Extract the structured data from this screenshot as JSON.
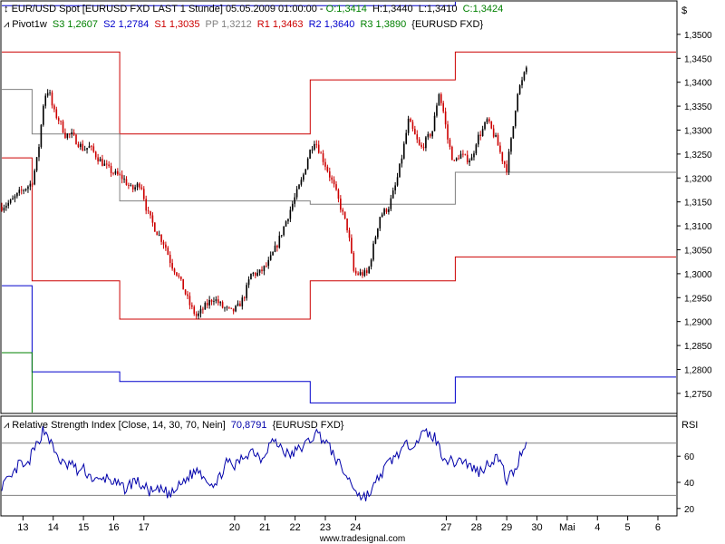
{
  "header": {
    "main_title_prefix": "EUR/USD Spot [EURUSD FXD LAST 1 Stunde] 05.05.2009 01:00:00 - ",
    "open": "O:1,3414",
    "high": "H:1,3440",
    "low": "L:1,3410",
    "close": "C:1,3424",
    "pivot_label": "Pivot1w",
    "s3": "S3 1,2607",
    "s2": "S2 1,2784",
    "s1": "S1 1,3035",
    "pp": "PP 1,3212",
    "r1": "R1 1,3463",
    "r2": "R2 1,3640",
    "r3": "R3 1,3890",
    "pivot_symbol": "{EURUSD FXD}",
    "rsi_title": "Relative Strength Index [Close, 14, 30, 70, Nein]",
    "rsi_value": "70,8791",
    "rsi_symbol": "{EURUSD FXD}"
  },
  "axis": {
    "currency_symbol": "$",
    "rsi_label": "RSI",
    "watermark": "www.tradesignal.com"
  },
  "colors": {
    "bull": "#000000",
    "bear": "#cc0000",
    "resistance": "#cc0000",
    "support": "#cc0000",
    "pp": "#808080",
    "s2": "#0000cc",
    "s3": "#008000",
    "rsi": "#0000aa",
    "open_green": "#008000",
    "s2_blue": "#0000cc",
    "s1_red": "#cc0000",
    "pp_gray": "#808080"
  },
  "chart_data": [
    {
      "type": "candlestick",
      "title": "EUR/USD Spot [EURUSD FXD LAST 1 Stunde]",
      "y_ticks": [
        "1,3500",
        "1,3450",
        "1,3400",
        "1,3350",
        "1,3300",
        "1,3250",
        "1,3200",
        "1,3150",
        "1,3100",
        "1,3050",
        "1,3000",
        "1,2950",
        "1,2900",
        "1,2850",
        "1,2800",
        "1,2750"
      ],
      "y_tick_values": [
        1.35,
        1.345,
        1.34,
        1.335,
        1.33,
        1.325,
        1.32,
        1.315,
        1.31,
        1.305,
        1.3,
        1.295,
        1.29,
        1.285,
        1.28,
        1.275
      ],
      "ylim": [
        1.271,
        1.3568
      ],
      "x_labels": [
        "13",
        "14",
        "15",
        "16",
        "17",
        "20",
        "21",
        "22",
        "23",
        "24",
        "27",
        "28",
        "29",
        "30",
        "Mai",
        "4",
        "5",
        "6"
      ],
      "x_label_pos": [
        13,
        14,
        15,
        16,
        17,
        20,
        21,
        22,
        23,
        24,
        27,
        28,
        29,
        30,
        31,
        32,
        33,
        34
      ],
      "xlim": [
        12.3,
        34.6
      ],
      "close_path": [
        [
          12.3,
          1.314
        ],
        [
          12.6,
          1.315
        ],
        [
          12.9,
          1.317
        ],
        [
          13.1,
          1.318
        ],
        [
          13.3,
          1.319
        ],
        [
          13.5,
          1.325
        ],
        [
          13.7,
          1.337
        ],
        [
          13.85,
          1.3385
        ],
        [
          14.0,
          1.334
        ],
        [
          14.2,
          1.332
        ],
        [
          14.4,
          1.329
        ],
        [
          14.6,
          1.329
        ],
        [
          14.8,
          1.3275
        ],
        [
          15.0,
          1.326
        ],
        [
          15.2,
          1.3265
        ],
        [
          15.5,
          1.324
        ],
        [
          15.8,
          1.322
        ],
        [
          16.0,
          1.321
        ],
        [
          16.3,
          1.32
        ],
        [
          16.6,
          1.3175
        ],
        [
          16.9,
          1.319
        ],
        [
          17.1,
          1.313
        ],
        [
          17.4,
          1.309
        ],
        [
          17.7,
          1.306
        ],
        [
          17.9,
          1.302
        ],
        [
          18.1,
          1.3
        ],
        [
          18.3,
          1.297
        ],
        [
          18.55,
          1.293
        ],
        [
          18.75,
          1.291
        ],
        [
          19.0,
          1.293
        ],
        [
          19.3,
          1.295
        ],
        [
          19.6,
          1.293
        ],
        [
          19.9,
          1.292
        ],
        [
          20.1,
          1.293
        ],
        [
          20.3,
          1.295
        ],
        [
          20.55,
          1.3
        ],
        [
          20.8,
          1.3
        ],
        [
          21.1,
          1.302
        ],
        [
          21.4,
          1.306
        ],
        [
          21.7,
          1.311
        ],
        [
          22.0,
          1.316
        ],
        [
          22.25,
          1.32
        ],
        [
          22.45,
          1.325
        ],
        [
          22.65,
          1.328
        ],
        [
          22.85,
          1.325
        ],
        [
          23.05,
          1.322
        ],
        [
          23.3,
          1.318
        ],
        [
          23.55,
          1.313
        ],
        [
          23.75,
          1.309
        ],
        [
          23.95,
          1.3
        ],
        [
          24.15,
          1.3
        ],
        [
          24.4,
          1.3
        ],
        [
          24.6,
          1.306
        ],
        [
          24.8,
          1.312
        ],
        [
          25.1,
          1.314
        ],
        [
          25.35,
          1.319
        ],
        [
          25.55,
          1.325
        ],
        [
          25.75,
          1.332
        ],
        [
          25.95,
          1.329
        ],
        [
          26.15,
          1.326
        ],
        [
          26.35,
          1.328
        ],
        [
          26.55,
          1.33
        ],
        [
          26.75,
          1.338
        ],
        [
          26.9,
          1.334
        ],
        [
          27.05,
          1.328
        ],
        [
          27.25,
          1.323
        ],
        [
          27.45,
          1.325
        ],
        [
          27.65,
          1.324
        ],
        [
          27.85,
          1.324
        ],
        [
          28.0,
          1.328
        ],
        [
          28.2,
          1.33
        ],
        [
          28.35,
          1.332
        ],
        [
          28.5,
          1.33
        ],
        [
          28.65,
          1.328
        ],
        [
          28.85,
          1.324
        ],
        [
          29.0,
          1.322
        ],
        [
          29.2,
          1.33
        ],
        [
          29.35,
          1.338
        ],
        [
          29.5,
          1.34
        ],
        [
          29.65,
          1.343
        ]
      ],
      "pivot_levels": {
        "R1": [
          [
            12.3,
            1.3463
          ],
          [
            13.3,
            1.3463
          ],
          [
            13.3,
            1.3463
          ],
          [
            16.2,
            1.3463
          ],
          [
            16.2,
            1.3292
          ],
          [
            22.5,
            1.3292
          ],
          [
            22.5,
            1.3405
          ],
          [
            27.3,
            1.3405
          ],
          [
            27.3,
            1.3463
          ],
          [
            34.6,
            1.3463
          ]
        ],
        "PP": [
          [
            12.3,
            1.3385
          ],
          [
            13.3,
            1.3385
          ],
          [
            13.3,
            1.3292
          ],
          [
            16.2,
            1.3292
          ],
          [
            16.2,
            1.3152
          ],
          [
            22.5,
            1.3152
          ],
          [
            22.5,
            1.3145
          ],
          [
            27.3,
            1.3145
          ],
          [
            27.3,
            1.3212
          ],
          [
            34.6,
            1.3212
          ]
        ],
        "S1": [
          [
            12.3,
            1.3242
          ],
          [
            13.3,
            1.3242
          ],
          [
            13.3,
            1.2985
          ],
          [
            16.2,
            1.2985
          ],
          [
            16.2,
            1.2905
          ],
          [
            22.5,
            1.2905
          ],
          [
            22.5,
            1.2985
          ],
          [
            27.3,
            1.2985
          ],
          [
            27.3,
            1.3035
          ],
          [
            34.6,
            1.3035
          ]
        ],
        "S2": [
          [
            12.3,
            1.2975
          ],
          [
            13.3,
            1.2975
          ],
          [
            13.3,
            1.2795
          ],
          [
            16.2,
            1.2795
          ],
          [
            16.2,
            1.2775
          ],
          [
            22.5,
            1.2775
          ],
          [
            22.5,
            1.273
          ],
          [
            27.3,
            1.273
          ],
          [
            27.3,
            1.2784
          ],
          [
            34.6,
            1.2784
          ]
        ],
        "S3": [
          [
            12.3,
            1.2835
          ],
          [
            13.3,
            1.2835
          ],
          [
            13.3,
            1.271
          ]
        ],
        "upper_blue": [
          [
            12.3,
            1.356
          ],
          [
            27.3,
            1.356
          ],
          [
            27.3,
            1.3568
          ]
        ]
      }
    },
    {
      "type": "line",
      "title": "Relative Strength Index [Close, 14, 30, 70, Nein]",
      "ylim": [
        15,
        90
      ],
      "y_ticks": [
        "60",
        "40",
        "20"
      ],
      "y_tick_values": [
        60,
        40,
        20
      ],
      "levels": [
        30,
        70
      ],
      "last_value": 70.8791,
      "rsi_path": [
        [
          12.3,
          38
        ],
        [
          12.6,
          42
        ],
        [
          12.9,
          55
        ],
        [
          13.1,
          50
        ],
        [
          13.3,
          62
        ],
        [
          13.5,
          70
        ],
        [
          13.65,
          80
        ],
        [
          13.8,
          78
        ],
        [
          14.0,
          65
        ],
        [
          14.2,
          58
        ],
        [
          14.4,
          52
        ],
        [
          14.6,
          55
        ],
        [
          14.8,
          48
        ],
        [
          15.0,
          50
        ],
        [
          15.2,
          45
        ],
        [
          15.5,
          40
        ],
        [
          15.8,
          44
        ],
        [
          16.1,
          38
        ],
        [
          16.4,
          35
        ],
        [
          16.7,
          42
        ],
        [
          17.0,
          36
        ],
        [
          17.3,
          32
        ],
        [
          17.6,
          34
        ],
        [
          17.9,
          30
        ],
        [
          18.2,
          38
        ],
        [
          18.5,
          45
        ],
        [
          18.8,
          50
        ],
        [
          19.1,
          42
        ],
        [
          19.4,
          38
        ],
        [
          19.7,
          55
        ],
        [
          20.0,
          52
        ],
        [
          20.3,
          60
        ],
        [
          20.6,
          65
        ],
        [
          20.9,
          58
        ],
        [
          21.2,
          72
        ],
        [
          21.5,
          68
        ],
        [
          21.8,
          60
        ],
        [
          22.1,
          65
        ],
        [
          22.4,
          70
        ],
        [
          22.7,
          78
        ],
        [
          23.0,
          72
        ],
        [
          23.3,
          60
        ],
        [
          23.6,
          48
        ],
        [
          23.9,
          38
        ],
        [
          24.2,
          28
        ],
        [
          24.5,
          32
        ],
        [
          24.8,
          45
        ],
        [
          25.1,
          55
        ],
        [
          25.4,
          62
        ],
        [
          25.7,
          68
        ],
        [
          26.0,
          72
        ],
        [
          26.3,
          78
        ],
        [
          26.6,
          75
        ],
        [
          26.9,
          60
        ],
        [
          27.2,
          55
        ],
        [
          27.5,
          58
        ],
        [
          27.8,
          52
        ],
        [
          28.1,
          48
        ],
        [
          28.4,
          55
        ],
        [
          28.7,
          60
        ],
        [
          29.0,
          42
        ],
        [
          29.3,
          50
        ],
        [
          29.5,
          65
        ],
        [
          29.65,
          70.88
        ]
      ]
    }
  ]
}
